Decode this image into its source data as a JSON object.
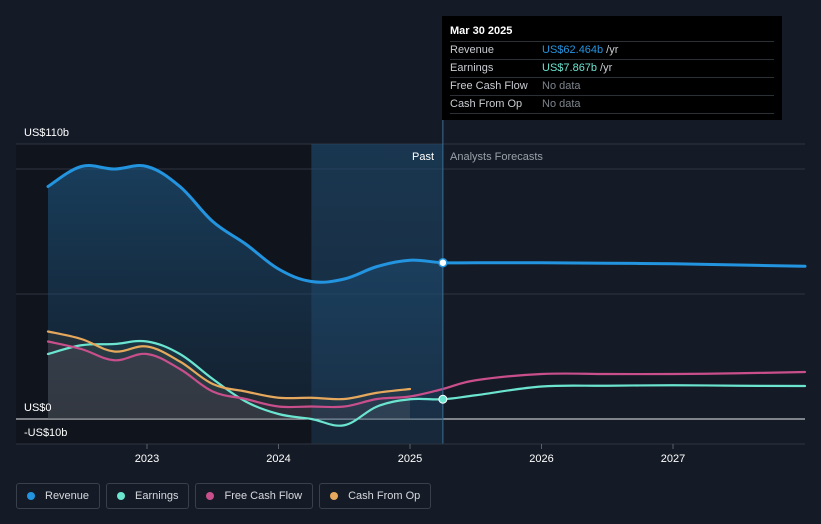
{
  "chart_data": {
    "type": "area",
    "y_labels": {
      "top": "US$110b",
      "zero": "US$0",
      "bottom": "-US$10b"
    },
    "ylim": [
      -10,
      110
    ],
    "x_ticks": [
      "2023",
      "2024",
      "2025",
      "2026",
      "2027"
    ],
    "past_label": "Past",
    "forecast_label": "Analysts Forecasts",
    "series": [
      {
        "name": "Revenue",
        "color": "#2394df",
        "x": [
          2022.25,
          2022.5,
          2022.75,
          2023.0,
          2023.25,
          2023.5,
          2023.75,
          2024.0,
          2024.25,
          2024.5,
          2024.75,
          2025.0,
          2025.25,
          2025.5,
          2026.0,
          2026.5,
          2027.0,
          2027.5,
          2028.0
        ],
        "values": [
          93,
          101,
          100,
          101,
          93,
          79,
          70,
          60,
          55,
          56,
          61,
          63.5,
          62.5,
          62.5,
          62.5,
          62.3,
          62.1,
          61.6,
          61.1
        ]
      },
      {
        "name": "Earnings",
        "color": "#6ce5d0",
        "x": [
          2022.25,
          2022.5,
          2022.75,
          2023.0,
          2023.25,
          2023.5,
          2023.75,
          2024.0,
          2024.25,
          2024.5,
          2024.75,
          2025.0,
          2025.25,
          2025.5,
          2026.0,
          2026.5,
          2027.0,
          2027.5,
          2028.0
        ],
        "values": [
          26,
          29.5,
          30,
          31,
          26,
          16,
          7,
          2,
          0,
          -2.5,
          5,
          7.9,
          7.9,
          9.5,
          13,
          13.3,
          13.5,
          13.3,
          13.2
        ]
      },
      {
        "name": "Free Cash Flow",
        "color": "#c94f8c",
        "x": [
          2022.25,
          2022.5,
          2022.75,
          2023.0,
          2023.25,
          2023.5,
          2023.75,
          2024.0,
          2024.25,
          2024.5,
          2024.75,
          2025.0,
          2025.25,
          2025.5,
          2026.0,
          2026.5,
          2027.0,
          2027.5,
          2028.0
        ],
        "values": [
          31,
          28,
          23.5,
          26,
          20,
          11,
          8,
          5,
          5,
          5,
          8,
          9,
          12,
          15.5,
          18,
          18,
          18,
          18.3,
          18.8
        ]
      },
      {
        "name": "Cash From Op",
        "color": "#e6a85c",
        "x": [
          2022.25,
          2022.5,
          2022.75,
          2023.0,
          2023.25,
          2023.5,
          2023.75,
          2024.0,
          2024.25,
          2024.5,
          2024.75,
          2025.0
        ],
        "values": [
          35,
          32,
          27,
          29,
          23,
          14,
          11,
          8.5,
          8.5,
          8,
          10.5,
          12
        ]
      }
    ],
    "tooltip": {
      "date": "Mar 30 2025",
      "rows": [
        {
          "label": "Revenue",
          "value": "US$62.464b",
          "unit": "/yr",
          "color": "#2394df"
        },
        {
          "label": "Earnings",
          "value": "US$7.867b",
          "unit": "/yr",
          "color": "#6ce5d0"
        },
        {
          "label": "Free Cash Flow",
          "value": "No data",
          "unit": "",
          "color": ""
        },
        {
          "label": "Cash From Op",
          "value": "No data",
          "unit": "",
          "color": ""
        }
      ]
    },
    "past_end": 2025.25,
    "highlight_start": 2024.25
  },
  "legend": [
    {
      "label": "Revenue",
      "color": "#2394df"
    },
    {
      "label": "Earnings",
      "color": "#6ce5d0"
    },
    {
      "label": "Free Cash Flow",
      "color": "#c94f8c"
    },
    {
      "label": "Cash From Op",
      "color": "#e6a85c"
    }
  ]
}
